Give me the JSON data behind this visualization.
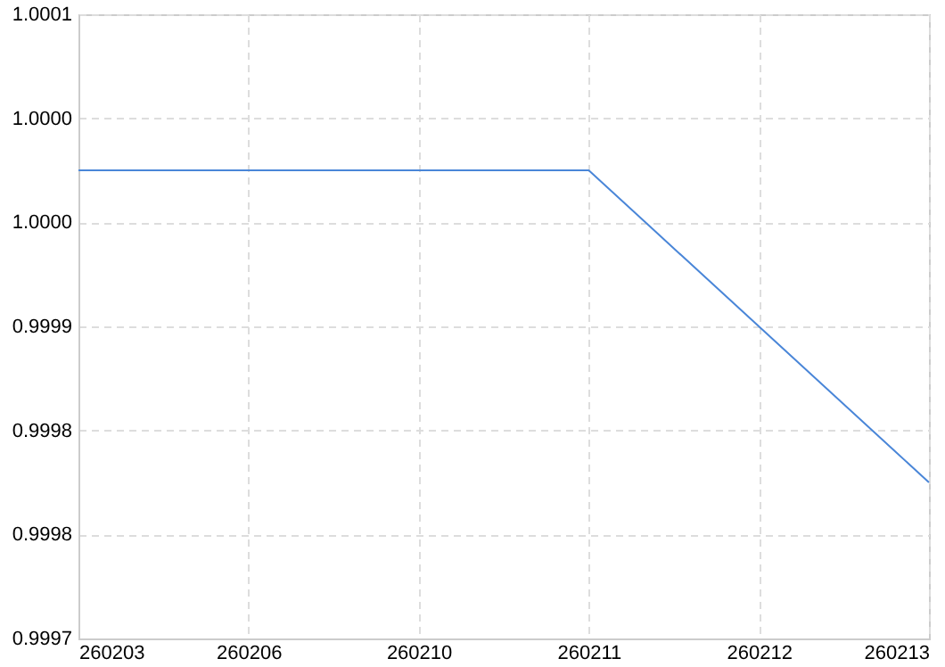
{
  "chart_data": {
    "type": "line",
    "categories": [
      "260203",
      "260206",
      "260210",
      "260211",
      "260212",
      "260213"
    ],
    "series": [
      {
        "color": "#4a86d8",
        "values": [
          1.0,
          1.0,
          1.0,
          1.0,
          0.9999,
          0.9998
        ]
      }
    ],
    "ylim": [
      0.9997,
      1.0001
    ],
    "yticks": [
      0.9997,
      {
        "value": 0.99976667,
        "label": "0.9998"
      },
      {
        "value": 0.99983333,
        "label": "0.9998"
      },
      0.9999,
      {
        "value": 0.99996667,
        "label": "1.0000"
      },
      {
        "value": 1.00003333,
        "label": "1.0000"
      },
      1.0001
    ],
    "grid": true,
    "marker": "none",
    "line_style": "solid"
  }
}
